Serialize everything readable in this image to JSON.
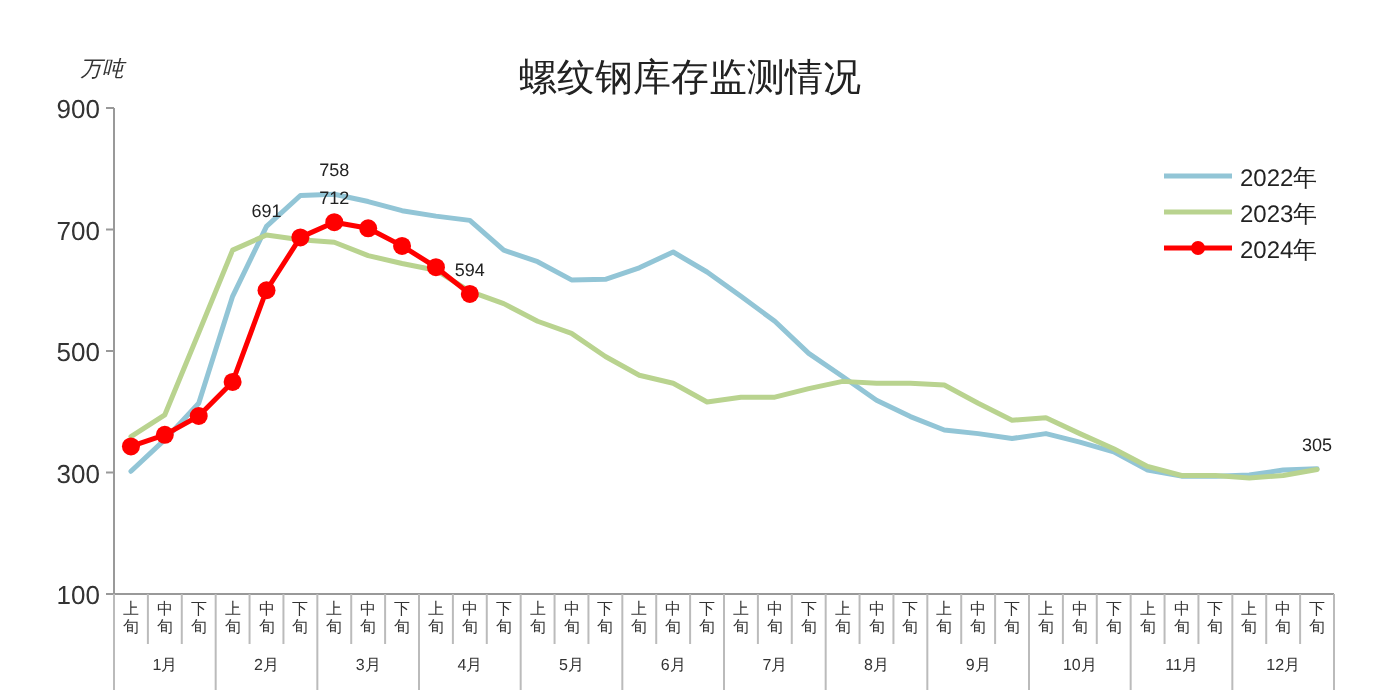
{
  "chart_data": {
    "type": "line",
    "title": "螺纹钢库存监测情况",
    "ylabel": "万吨",
    "categories": [
      "上旬",
      "中旬",
      "下旬",
      "上旬",
      "中旬",
      "下旬",
      "上旬",
      "中旬",
      "下旬",
      "上旬",
      "中旬",
      "下旬",
      "上旬",
      "中旬",
      "下旬",
      "上旬",
      "中旬",
      "下旬",
      "上旬",
      "中旬",
      "下旬",
      "上旬",
      "中旬",
      "下旬",
      "上旬",
      "中旬",
      "下旬",
      "上旬",
      "中旬",
      "下旬",
      "上旬",
      "中旬",
      "下旬",
      "上旬",
      "中旬",
      "下旬"
    ],
    "annotations": [
      "1月",
      "2月",
      "3月",
      "4月",
      "5月",
      "6月",
      "7月",
      "8月",
      "9月",
      "10月",
      "11月",
      "12月"
    ],
    "series": [
      {
        "name": "2022年",
        "color": "#92c5d6",
        "marker": "none",
        "values": [
          302,
          354,
          414,
          590,
          705,
          756,
          758,
          746,
          731,
          722,
          715,
          666,
          647,
          617,
          618,
          637,
          663,
          630,
          590,
          549,
          496,
          458,
          419,
          392,
          370,
          364,
          356,
          364,
          350,
          334,
          304,
          294,
          294,
          296,
          304,
          306
        ],
        "value_labels": [
          null,
          null,
          null,
          null,
          null,
          null,
          "758",
          null,
          null,
          null,
          null,
          null,
          null,
          null,
          null,
          null,
          null,
          null,
          null,
          null,
          null,
          null,
          null,
          null,
          null,
          null,
          null,
          null,
          null,
          null,
          null,
          null,
          null,
          null,
          null,
          null
        ]
      },
      {
        "name": "2023年",
        "color": "#b9d38f",
        "marker": "none",
        "values": [
          359,
          395,
          530,
          666,
          691,
          683,
          679,
          657,
          644,
          633,
          598,
          578,
          549,
          529,
          491,
          460,
          447,
          416,
          424,
          424,
          438,
          450,
          447,
          447,
          444,
          414,
          386,
          390,
          364,
          339,
          310,
          295,
          295,
          291,
          295,
          305
        ],
        "value_labels": [
          null,
          null,
          null,
          null,
          "691",
          null,
          null,
          null,
          null,
          null,
          null,
          null,
          null,
          null,
          null,
          null,
          null,
          null,
          null,
          null,
          null,
          null,
          null,
          null,
          null,
          null,
          null,
          null,
          null,
          null,
          null,
          null,
          null,
          null,
          null,
          "305"
        ]
      },
      {
        "name": "2024年",
        "color": "#ff0000",
        "marker": "circle",
        "values": [
          343,
          362,
          393,
          449,
          600,
          687,
          712,
          702,
          673,
          638,
          594,
          null,
          null,
          null,
          null,
          null,
          null,
          null,
          null,
          null,
          null,
          null,
          null,
          null,
          null,
          null,
          null,
          null,
          null,
          null,
          null,
          null,
          null,
          null,
          null,
          null
        ],
        "value_labels": [
          null,
          null,
          null,
          null,
          null,
          null,
          "712",
          null,
          null,
          null,
          "594",
          null,
          null,
          null,
          null,
          null,
          null,
          null,
          null,
          null,
          null,
          null,
          null,
          null,
          null,
          null,
          null,
          null,
          null,
          null,
          null,
          null,
          null,
          null,
          null,
          null
        ]
      }
    ],
    "ylim": [
      100,
      900
    ],
    "yticks": [
      100,
      300,
      500,
      700,
      900
    ],
    "legend": "top right"
  }
}
